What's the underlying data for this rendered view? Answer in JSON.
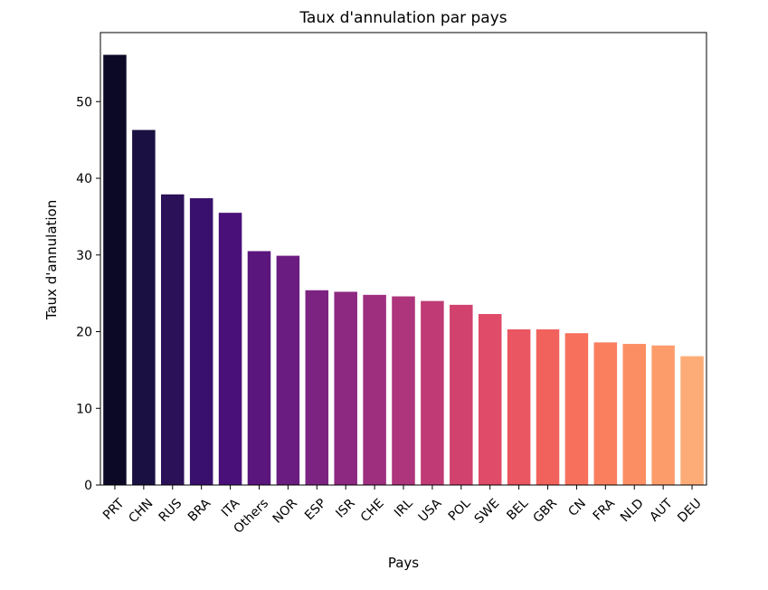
{
  "chart_data": {
    "type": "bar",
    "title": "Taux d'annulation par pays",
    "xlabel": "Pays",
    "ylabel": "Taux d'annulation",
    "categories": [
      "PRT",
      "CHN",
      "RUS",
      "BRA",
      "ITA",
      "Others",
      "NOR",
      "ESP",
      "ISR",
      "CHE",
      "IRL",
      "USA",
      "POL",
      "SWE",
      "BEL",
      "GBR",
      "CN",
      "FRA",
      "NLD",
      "AUT",
      "DEU"
    ],
    "values": [
      56.1,
      46.3,
      37.9,
      37.4,
      35.5,
      30.5,
      29.9,
      25.4,
      25.2,
      24.8,
      24.6,
      24.0,
      23.5,
      22.3,
      20.3,
      20.3,
      19.8,
      18.6,
      18.4,
      18.2,
      16.8
    ],
    "colors": [
      "#0c0927",
      "#1a1041",
      "#2b1158",
      "#3a106e",
      "#4a1079",
      "#5b167e",
      "#6b1c81",
      "#7c2382",
      "#8d2981",
      "#9e2f7f",
      "#ae347b",
      "#c03a76",
      "#d1426f",
      "#df4b68",
      "#ea5661",
      "#f2625d",
      "#f7705c",
      "#fa7f5e",
      "#fc8e64",
      "#fd9c6b",
      "#fdac77"
    ],
    "yticks": [
      0,
      10,
      20,
      30,
      40,
      50
    ],
    "ylim": [
      0,
      59
    ],
    "grid": false
  }
}
